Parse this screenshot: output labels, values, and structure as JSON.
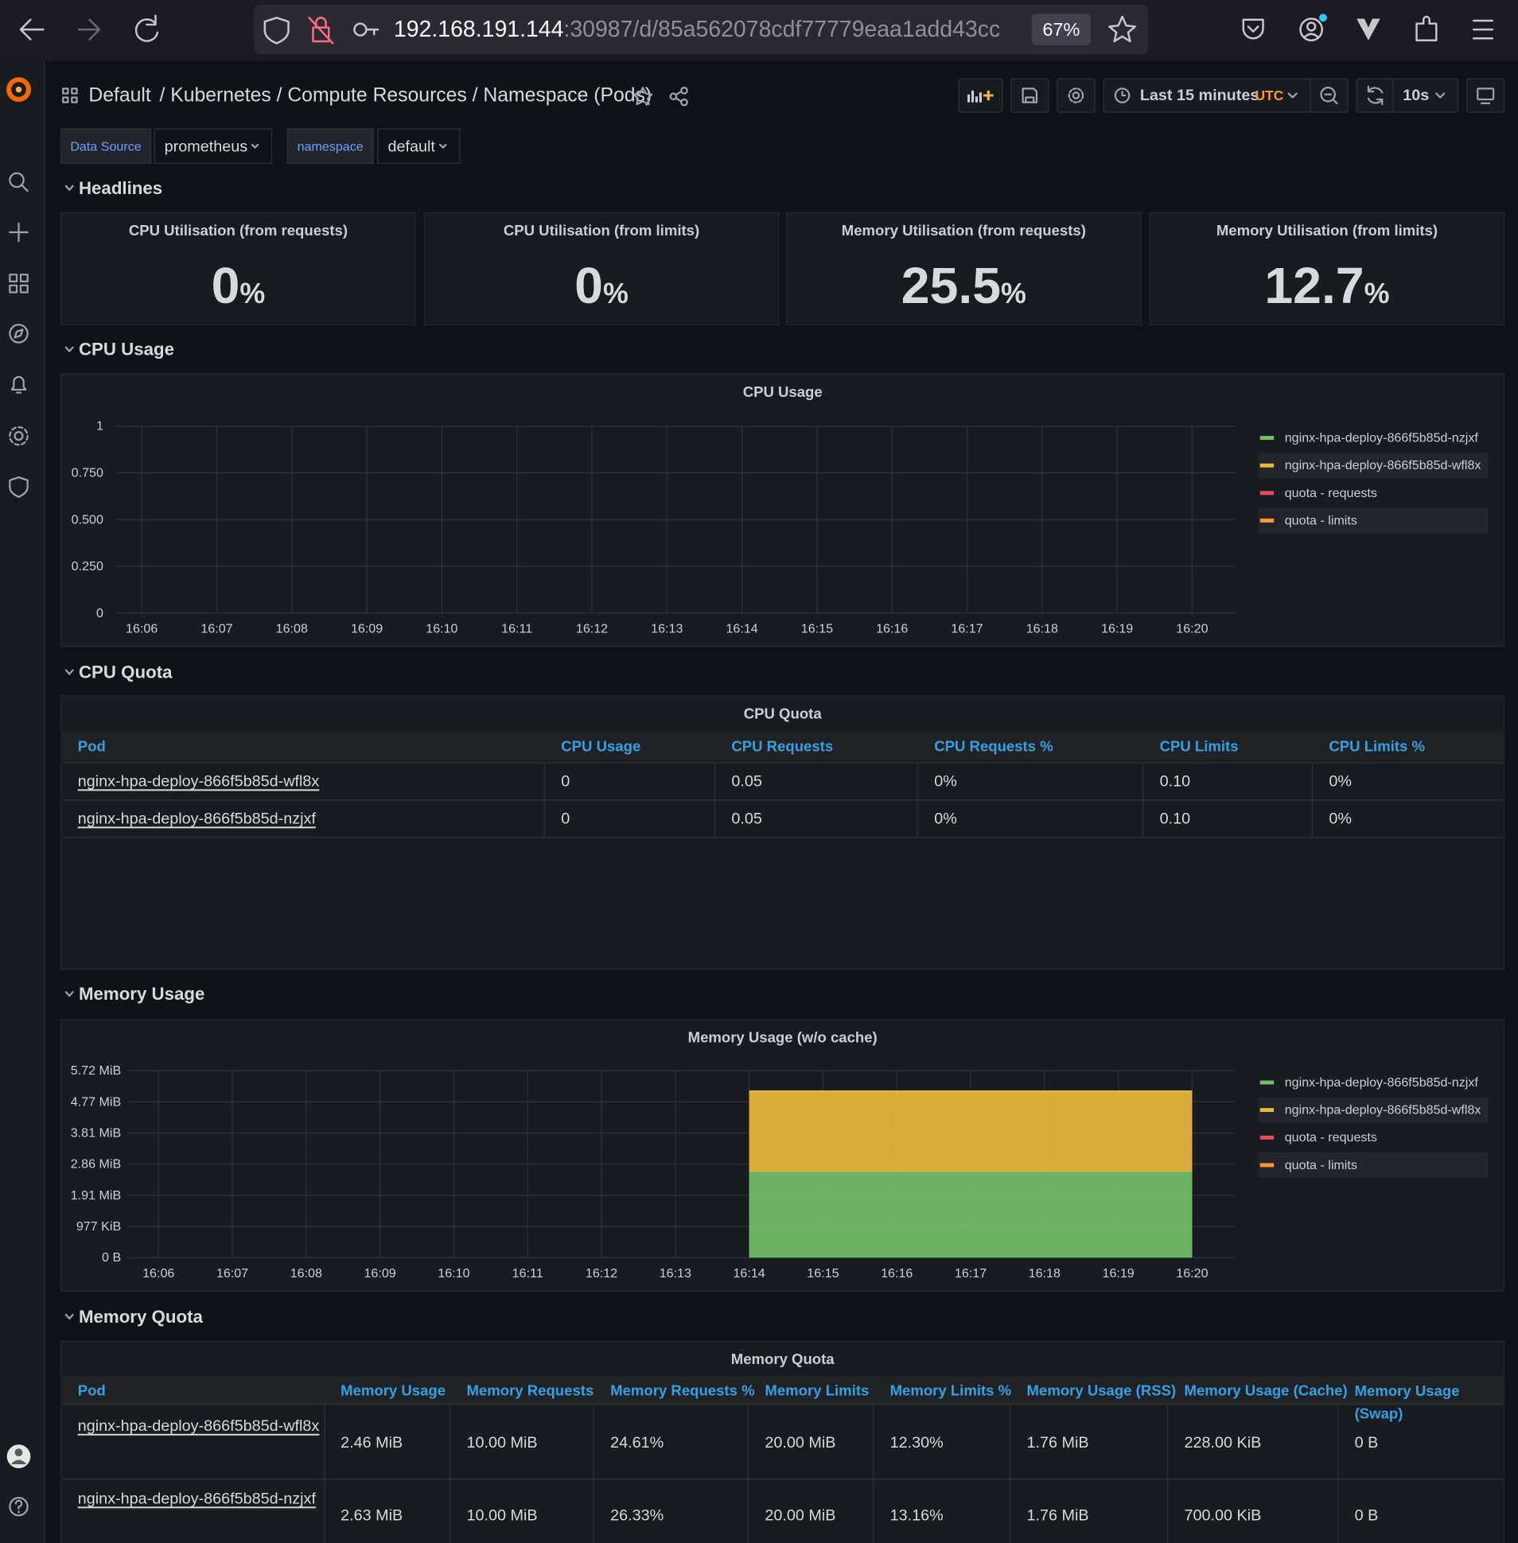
{
  "browser": {
    "url_host": "192.168.191.144",
    "url_path": ":30987/d/85a562078cdf77779eaa1add43cc",
    "zoom": "67%"
  },
  "header": {
    "folder": "Default",
    "title": "/ Kubernetes / Compute Resources / Namespace (Pods)",
    "time_range": "Last 15 minutes",
    "timezone": "UTC",
    "refresh": "10s"
  },
  "variables": [
    {
      "label": "Data Source",
      "value": "prometheus"
    },
    {
      "label": "namespace",
      "value": "default"
    }
  ],
  "rows": [
    "Headlines",
    "CPU Usage",
    "CPU Quota",
    "Memory Usage",
    "Memory Quota"
  ],
  "stats": [
    {
      "title": "CPU Utilisation (from requests)",
      "value": 0,
      "unit": "%"
    },
    {
      "title": "CPU Utilisation (from limits)",
      "value": 0,
      "unit": "%"
    },
    {
      "title": "Memory Utilisation (from requests)",
      "value": 25.5,
      "unit": "%"
    },
    {
      "title": "Memory Utilisation (from limits)",
      "value": 12.7,
      "unit": "%"
    }
  ],
  "cpu_chart": {
    "type": "line",
    "title": "CPU Usage",
    "categories": [
      "16:06",
      "16:07",
      "16:08",
      "16:09",
      "16:10",
      "16:11",
      "16:12",
      "16:13",
      "16:14",
      "16:15",
      "16:16",
      "16:17",
      "16:18",
      "16:19",
      "16:20"
    ],
    "ylim": [
      0,
      1
    ],
    "yticks": [
      0,
      {
        "value": 0.25,
        "label": "0.250"
      },
      {
        "value": 0.5,
        "label": "0.500"
      },
      {
        "value": 0.75,
        "label": "0.750"
      },
      1
    ],
    "grid": true,
    "legend": "right",
    "series": [
      {
        "name": "nginx-hpa-deploy-866f5b85d-nzjxf",
        "color": "#73bf69",
        "values": [
          null,
          null,
          null,
          null,
          null,
          null,
          null,
          null,
          null,
          null,
          null,
          null,
          null,
          null,
          null
        ]
      },
      {
        "name": "nginx-hpa-deploy-866f5b85d-wfl8x",
        "color": "#eab839",
        "values": [
          null,
          null,
          null,
          null,
          null,
          null,
          null,
          null,
          null,
          null,
          null,
          null,
          null,
          null,
          null
        ]
      },
      {
        "name": "quota - requests",
        "color": "#f2495c",
        "values": [
          null,
          null,
          null,
          null,
          null,
          null,
          null,
          null,
          null,
          null,
          null,
          null,
          null,
          null,
          null
        ]
      },
      {
        "name": "quota - limits",
        "color": "#ff9830",
        "values": [
          null,
          null,
          null,
          null,
          null,
          null,
          null,
          null,
          null,
          null,
          null,
          null,
          null,
          null,
          null
        ]
      }
    ]
  },
  "cpu_quota": {
    "title": "CPU Quota",
    "columns": [
      "Pod",
      "CPU Usage",
      "CPU Requests",
      "CPU Requests %",
      "CPU Limits",
      "CPU Limits %"
    ],
    "rows": [
      [
        "nginx-hpa-deploy-866f5b85d-wfl8x",
        "0",
        "0.05",
        "0%",
        "0.10",
        "0%"
      ],
      [
        "nginx-hpa-deploy-866f5b85d-nzjxf",
        "0",
        "0.05",
        "0%",
        "0.10",
        "0%"
      ]
    ]
  },
  "memory_chart": {
    "type": "area",
    "stacked": true,
    "title": "Memory Usage (w/o cache)",
    "categories": [
      "16:06",
      "16:07",
      "16:08",
      "16:09",
      "16:10",
      "16:11",
      "16:12",
      "16:13",
      "16:14",
      "16:15",
      "16:16",
      "16:17",
      "16:18",
      "16:19",
      "16:20"
    ],
    "ylim": [
      0,
      6000000
    ],
    "yticks": [
      {
        "value": 0,
        "label": "0 B"
      },
      {
        "value": 1000000,
        "label": "977 KiB"
      },
      {
        "value": 2000000,
        "label": "1.91 MiB"
      },
      {
        "value": 3000000,
        "label": "2.86 MiB"
      },
      {
        "value": 4000000,
        "label": "3.81 MiB"
      },
      {
        "value": 5000000,
        "label": "4.77 MiB"
      },
      {
        "value": 6000000,
        "label": "5.72 MiB"
      }
    ],
    "grid": true,
    "legend": "right",
    "series": [
      {
        "name": "nginx-hpa-deploy-866f5b85d-nzjxf",
        "color": "#73bf69",
        "values": [
          null,
          null,
          null,
          null,
          null,
          null,
          null,
          null,
          2760000,
          2760000,
          2760000,
          2760000,
          2760000,
          2760000,
          2760000
        ]
      },
      {
        "name": "nginx-hpa-deploy-866f5b85d-wfl8x",
        "color": "#eab839",
        "values": [
          null,
          null,
          null,
          null,
          null,
          null,
          null,
          null,
          2580000,
          2580000,
          2580000,
          2580000,
          2580000,
          2580000,
          2580000
        ]
      },
      {
        "name": "quota - requests",
        "color": "#f2495c",
        "values": [
          null,
          null,
          null,
          null,
          null,
          null,
          null,
          null,
          null,
          null,
          null,
          null,
          null,
          null,
          null
        ]
      },
      {
        "name": "quota - limits",
        "color": "#ff9830",
        "values": [
          null,
          null,
          null,
          null,
          null,
          null,
          null,
          null,
          null,
          null,
          null,
          null,
          null,
          null,
          null
        ]
      }
    ]
  },
  "memory_quota": {
    "title": "Memory Quota",
    "columns": [
      "Pod",
      "Memory Usage",
      "Memory Requests",
      "Memory Requests %",
      "Memory Limits",
      "Memory Limits %",
      "Memory Usage (RSS)",
      "Memory Usage (Cache)",
      "Memory Usage (Swap)"
    ],
    "rows": [
      [
        "nginx-hpa-deploy-866f5b85d-wfl8x",
        "2.46 MiB",
        "10.00 MiB",
        "24.61%",
        "20.00 MiB",
        "12.30%",
        "1.76 MiB",
        "228.00 KiB",
        "0 B"
      ],
      [
        "nginx-hpa-deploy-866f5b85d-nzjxf",
        "2.63 MiB",
        "10.00 MiB",
        "26.33%",
        "20.00 MiB",
        "13.16%",
        "1.76 MiB",
        "700.00 KiB",
        "0 B"
      ]
    ]
  }
}
